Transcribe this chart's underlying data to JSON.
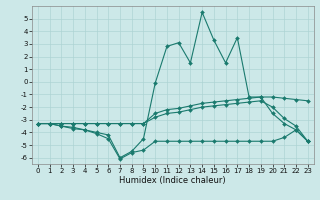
{
  "title": "",
  "xlabel": "Humidex (Indice chaleur)",
  "background_color": "#cce8e8",
  "line_color": "#1a7a6e",
  "grid_color": "#aed4d4",
  "x": [
    0,
    1,
    2,
    3,
    4,
    5,
    6,
    7,
    8,
    9,
    10,
    11,
    12,
    13,
    14,
    15,
    16,
    17,
    18,
    19,
    20,
    21,
    22,
    23
  ],
  "line_upper": [
    -3.3,
    -3.3,
    -3.3,
    -3.3,
    -3.3,
    -3.3,
    -3.3,
    -3.3,
    -3.3,
    -3.3,
    -2.5,
    -2.2,
    -2.1,
    -1.9,
    -1.7,
    -1.6,
    -1.5,
    -1.4,
    -1.3,
    -1.2,
    -1.2,
    -1.3,
    -1.4,
    -1.5
  ],
  "line_mid_upper": [
    -3.3,
    -3.3,
    -3.3,
    -3.3,
    -3.3,
    -3.3,
    -3.3,
    -3.3,
    -3.3,
    -3.3,
    -2.8,
    -2.5,
    -2.4,
    -2.2,
    -2.0,
    -1.9,
    -1.8,
    -1.7,
    -1.6,
    -1.5,
    -2.0,
    -2.9,
    -3.5,
    -4.7
  ],
  "line_spike": [
    -3.3,
    -3.3,
    -3.5,
    -3.7,
    -3.8,
    -4.0,
    -4.2,
    -6.0,
    -5.5,
    -4.5,
    -0.1,
    2.8,
    3.1,
    1.5,
    5.5,
    3.3,
    1.5,
    3.5,
    -1.2,
    -1.2,
    -2.5,
    -3.3,
    -3.8,
    -4.7
  ],
  "line_lower": [
    -3.3,
    -3.3,
    -3.5,
    -3.6,
    -3.8,
    -4.1,
    -4.5,
    -6.1,
    -5.6,
    -5.4,
    -4.7,
    -4.7,
    -4.7,
    -4.7,
    -4.7,
    -4.7,
    -4.7,
    -4.7,
    -4.7,
    -4.7,
    -4.7,
    -4.4,
    -3.8,
    -4.7
  ],
  "xlim": [
    -0.5,
    23.5
  ],
  "ylim": [
    -6.5,
    6.0
  ],
  "yticks": [
    -6,
    -5,
    -4,
    -3,
    -2,
    -1,
    0,
    1,
    2,
    3,
    4,
    5
  ],
  "xticks": [
    0,
    1,
    2,
    3,
    4,
    5,
    6,
    7,
    8,
    9,
    10,
    11,
    12,
    13,
    14,
    15,
    16,
    17,
    18,
    19,
    20,
    21,
    22,
    23
  ],
  "tick_fontsize": 5.0,
  "xlabel_fontsize": 6.0
}
